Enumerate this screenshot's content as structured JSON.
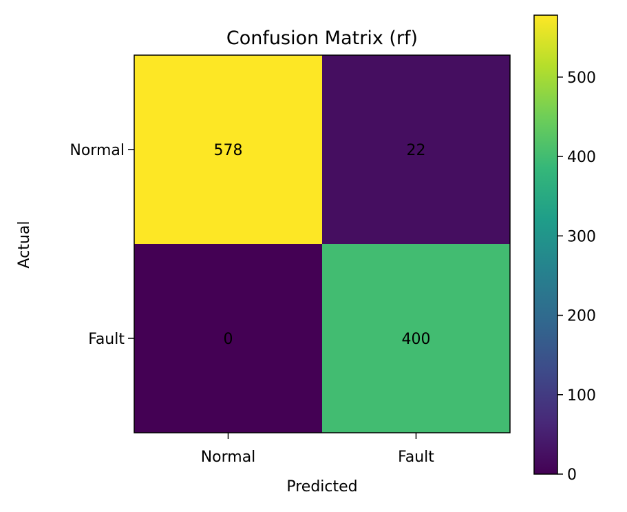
{
  "chart_data": {
    "type": "heatmap",
    "title": "Confusion Matrix (rf)",
    "xlabel": "Predicted",
    "ylabel": "Actual",
    "x_categories": [
      "Normal",
      "Fault"
    ],
    "y_categories": [
      "Normal",
      "Fault"
    ],
    "values": [
      [
        578,
        22
      ],
      [
        0,
        400
      ]
    ],
    "colormap": "viridis",
    "colorbar": {
      "min": 0,
      "max": 578,
      "ticks": [
        0,
        100,
        200,
        300,
        400,
        500
      ]
    },
    "grid": false
  }
}
